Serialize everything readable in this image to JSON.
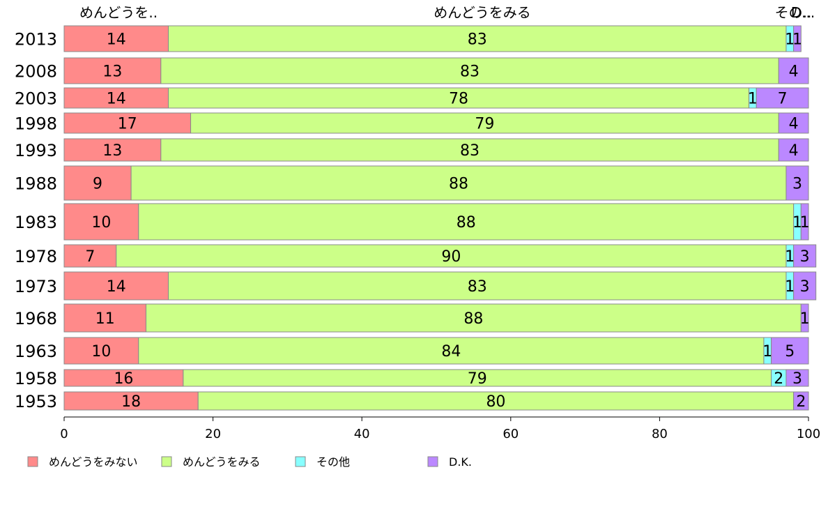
{
  "chart_data": {
    "type": "bar",
    "orientation": "horizontal",
    "stacked": true,
    "bar_width_varies": true,
    "xlim": [
      0,
      100
    ],
    "x_ticks": [
      "0",
      "20",
      "40",
      "60",
      "80",
      "100"
    ],
    "top_labels": [
      "めんどうを..",
      "めんどうをみる",
      "その..",
      "D..."
    ],
    "categories": [
      "2013",
      "2008",
      "2003",
      "1998",
      "1993",
      "1988",
      "1983",
      "1978",
      "1973",
      "1968",
      "1963",
      "1958",
      "1953"
    ],
    "series": [
      {
        "name": "めんどうをみない",
        "color": "#ff8a8a",
        "values": [
          14,
          13,
          14,
          17,
          13,
          9,
          10,
          7,
          14,
          11,
          10,
          16,
          18
        ],
        "data_labels": [
          "14",
          "13",
          "14",
          "17",
          "13",
          "9",
          "10",
          "7",
          "14",
          "11",
          "10",
          "16",
          "18"
        ]
      },
      {
        "name": "めんどうをみる",
        "color": "#ccff88",
        "values": [
          83,
          83,
          78,
          79,
          83,
          88,
          88,
          90,
          83,
          88,
          84,
          79,
          80
        ],
        "data_labels": [
          "83",
          "83",
          "78",
          "79",
          "83",
          "88",
          "88",
          "90",
          "83",
          "88",
          "84",
          "79",
          "80"
        ]
      },
      {
        "name": "その他",
        "color": "#88ffff",
        "values": [
          1,
          0,
          1,
          0,
          0,
          0,
          1,
          1,
          1,
          0,
          1,
          2,
          0
        ],
        "data_labels": [
          "1",
          "",
          "1",
          "",
          "",
          "",
          "1",
          "1",
          "1",
          "",
          "1",
          "2",
          ""
        ]
      },
      {
        "name": "D.K.",
        "color": "#bb88ff",
        "values": [
          1,
          4,
          7,
          4,
          4,
          3,
          1,
          3,
          3,
          1,
          5,
          3,
          2
        ],
        "data_labels": [
          "1",
          "4",
          "7",
          "4",
          "4",
          "3",
          "1",
          "3",
          "3",
          "1",
          "5",
          "3",
          "2"
        ]
      }
    ],
    "legend": {
      "placement": "bottom-left",
      "entries": [
        "めんどうをみない",
        "めんどうをみる",
        "その他",
        "D.K."
      ]
    }
  }
}
